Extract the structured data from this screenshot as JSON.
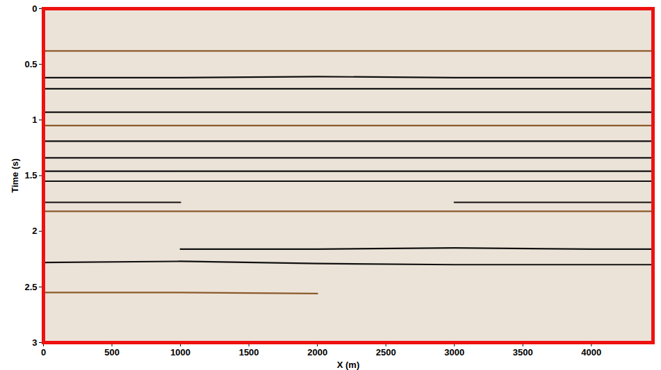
{
  "chart_data": {
    "type": "line",
    "x_label": "X (m)",
    "y_label": "Time (s)",
    "xlim": [
      0,
      4450
    ],
    "xticks": [
      0,
      500,
      1000,
      1500,
      2000,
      2500,
      3000,
      3500,
      4000
    ],
    "ylim": [
      0,
      3
    ],
    "yticks": [
      0,
      0.5,
      1,
      1.5,
      2,
      2.5,
      3
    ],
    "grid": false,
    "x": [
      0,
      1000,
      2000,
      3000,
      4000,
      4450
    ],
    "series": [
      {
        "color": "#8a5a2b",
        "values": [
          0.38,
          0.38,
          0.38,
          0.38,
          0.38,
          0.38
        ]
      },
      {
        "color": "#111111",
        "values": [
          0.62,
          0.62,
          0.61,
          0.62,
          0.62,
          0.62
        ]
      },
      {
        "color": "#111111",
        "values": [
          0.72,
          0.72,
          0.72,
          0.72,
          0.72,
          0.72
        ]
      },
      {
        "color": "#111111",
        "values": [
          0.93,
          0.93,
          0.93,
          0.93,
          0.93,
          0.93
        ]
      },
      {
        "color": "#8a5a2b",
        "values": [
          1.05,
          1.05,
          1.05,
          1.05,
          1.05,
          1.05
        ]
      },
      {
        "color": "#111111",
        "values": [
          1.19,
          1.19,
          1.19,
          1.19,
          1.19,
          1.19
        ]
      },
      {
        "color": "#111111",
        "values": [
          1.34,
          1.34,
          1.34,
          1.34,
          1.34,
          1.34
        ]
      },
      {
        "color": "#111111",
        "values": [
          1.46,
          1.46,
          1.46,
          1.46,
          1.46,
          1.46
        ]
      },
      {
        "color": "#111111",
        "values": [
          1.55,
          1.55,
          1.55,
          1.55,
          1.55,
          1.55
        ]
      },
      {
        "color": "#111111",
        "values": [
          1.74,
          1.74,
          null,
          1.74,
          1.74,
          1.74
        ]
      },
      {
        "color": "#8a5a2b",
        "values": [
          1.82,
          1.82,
          1.82,
          1.82,
          1.82,
          1.82
        ]
      },
      {
        "color": "#111111",
        "values": [
          null,
          2.16,
          2.16,
          2.15,
          2.16,
          2.16
        ]
      },
      {
        "color": "#111111",
        "values": [
          2.28,
          2.27,
          2.29,
          2.3,
          2.3,
          2.3
        ]
      },
      {
        "color": "#8a5a2b",
        "values": [
          2.55,
          2.55,
          2.56,
          null,
          null,
          null
        ]
      }
    ]
  }
}
